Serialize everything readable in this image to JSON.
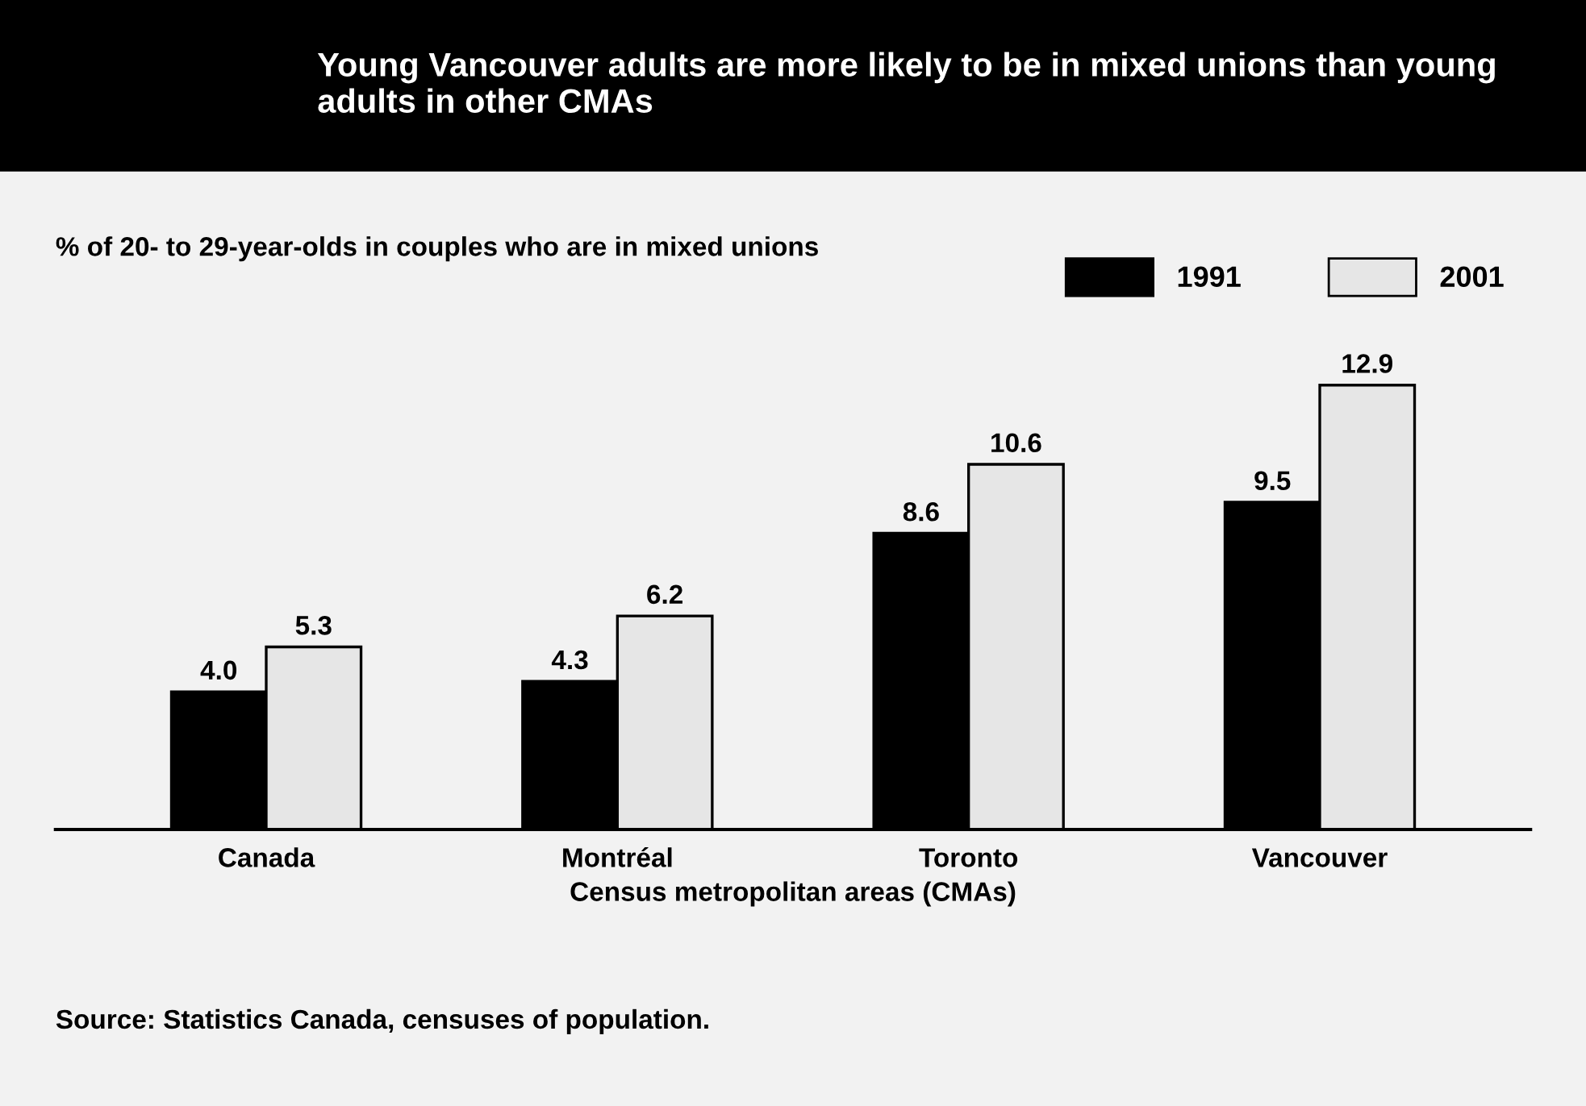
{
  "chart_data": {
    "type": "bar",
    "title": "Young Vancouver adults are more likely to be in mixed unions than young adults in other CMAs",
    "subtitle": "% of 20- to 29-year-olds in couples who are in mixed unions",
    "xlabel": "Census metropolitan areas (CMAs)",
    "categories": [
      "Canada",
      "Montréal",
      "Toronto",
      "Vancouver"
    ],
    "series": [
      {
        "name": "1991",
        "color": "#000000",
        "values": [
          4.0,
          4.3,
          8.6,
          9.5
        ],
        "value_labels": [
          "4.0",
          "4.3",
          "8.6",
          "9.5"
        ]
      },
      {
        "name": "2001",
        "color": "#e6e6e6",
        "values": [
          5.3,
          6.2,
          10.6,
          12.9
        ],
        "value_labels": [
          "5.3",
          "6.2",
          "10.6",
          "12.9"
        ]
      }
    ],
    "legend": "top right",
    "grid": false,
    "annotations": [
      "Source: Statistics Canada, censuses of population."
    ]
  }
}
